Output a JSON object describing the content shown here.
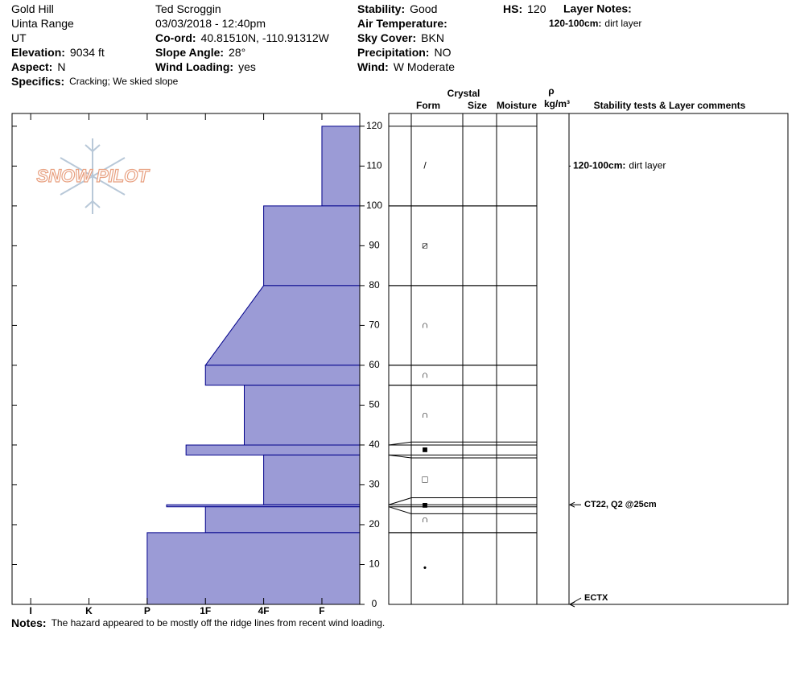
{
  "header": {
    "columns": [
      [
        {
          "text": "Gold Hill"
        },
        {
          "text": "Uinta Range"
        },
        {
          "text": "UT"
        },
        {
          "label": "Elevation:",
          "value": "9034 ft"
        },
        {
          "label": "Aspect:",
          "value": "N"
        }
      ],
      [
        {
          "text": "Ted Scroggin"
        },
        {
          "text": "03/03/2018 - 12:40pm"
        },
        {
          "label": "Co-ord:",
          "value": "40.81510N, -110.91312W"
        },
        {
          "label": "Slope Angle:",
          "value": "28°"
        },
        {
          "label": "Wind Loading:",
          "value": "yes"
        }
      ],
      [
        {
          "label": "Stability:",
          "value": "Good"
        },
        {
          "label": "Air Temperature:"
        },
        {
          "label": "Sky Cover:",
          "value": "BKN"
        },
        {
          "label": "Precipitation:",
          "value": "NO"
        },
        {
          "label": "Wind:",
          "value": "W Moderate"
        }
      ],
      [
        {
          "label": "HS:",
          "value": "120"
        }
      ]
    ],
    "specifics": {
      "label": "Specifics:",
      "value": "Cracking;  We skied slope"
    },
    "layer_notes": {
      "title": "Layer Notes:",
      "items": [
        {
          "label": "120-100cm:",
          "value": "dirt layer"
        }
      ]
    }
  },
  "chart_data": {
    "type": "snow-profile",
    "logo": "SNOW PILOT",
    "ylim": [
      0,
      123.2
    ],
    "yticks": [
      0,
      10,
      20,
      30,
      40,
      50,
      60,
      70,
      80,
      90,
      100,
      110,
      120
    ],
    "xlim": [
      0.68,
      6.65
    ],
    "xticks": [
      {
        "value": 1,
        "label": "I"
      },
      {
        "value": 2,
        "label": "K"
      },
      {
        "value": 3,
        "label": "P"
      },
      {
        "value": 4,
        "label": "1F"
      },
      {
        "value": 5,
        "label": "4F"
      },
      {
        "value": 6,
        "label": "F"
      }
    ],
    "color": "#9b9bd6",
    "columns": {
      "crystal": "Crystal",
      "form": "Form",
      "size": "Size",
      "moisture": "Moisture",
      "rho": "ρ",
      "density_unit": "kg/m³",
      "comments": "Stability tests & Layer comments"
    },
    "layers": [
      {
        "top": 120,
        "bottom": 100,
        "hardness_top": 6,
        "hardness_bottom": 6,
        "form": "/"
      },
      {
        "top": 100,
        "bottom": 80,
        "hardness_top": 5,
        "hardness_bottom": 5,
        "form": "⧄"
      },
      {
        "top": 80,
        "bottom": 60,
        "hardness_top": 5,
        "hardness_bottom": 4,
        "form": "∩"
      },
      {
        "top": 60,
        "bottom": 55,
        "hardness_top": 4,
        "hardness_bottom": 4,
        "form": "∩"
      },
      {
        "top": 55,
        "bottom": 40,
        "hardness_top": 4.667,
        "hardness_bottom": 4.667,
        "form": "∩"
      },
      {
        "top": 40,
        "bottom": 37.5,
        "hardness_top": 3.667,
        "hardness_bottom": 3.667,
        "form": "■"
      },
      {
        "top": 37.5,
        "bottom": 25,
        "hardness_top": 5,
        "hardness_bottom": 5,
        "form": "□"
      },
      {
        "top": 25,
        "bottom": 24.5,
        "hardness_top": 3.333,
        "hardness_bottom": 3.333,
        "form": "■"
      },
      {
        "top": 24.5,
        "bottom": 18,
        "hardness_top": 4,
        "hardness_bottom": 4,
        "form": "∩"
      },
      {
        "top": 18,
        "bottom": 0,
        "hardness_top": 3,
        "hardness_bottom": 3,
        "form": "•"
      }
    ],
    "layer_comment": {
      "depth": 110,
      "label": "120-100cm:",
      "text": "dirt layer"
    },
    "tests": [
      {
        "depth": 25,
        "text": "CT22, Q2 @25cm"
      },
      {
        "depth": 0,
        "text": "ECTX"
      }
    ]
  },
  "notes": {
    "label": "Notes:",
    "value": "The hazard appeared to be mostly off the ridge lines from recent wind loading."
  }
}
